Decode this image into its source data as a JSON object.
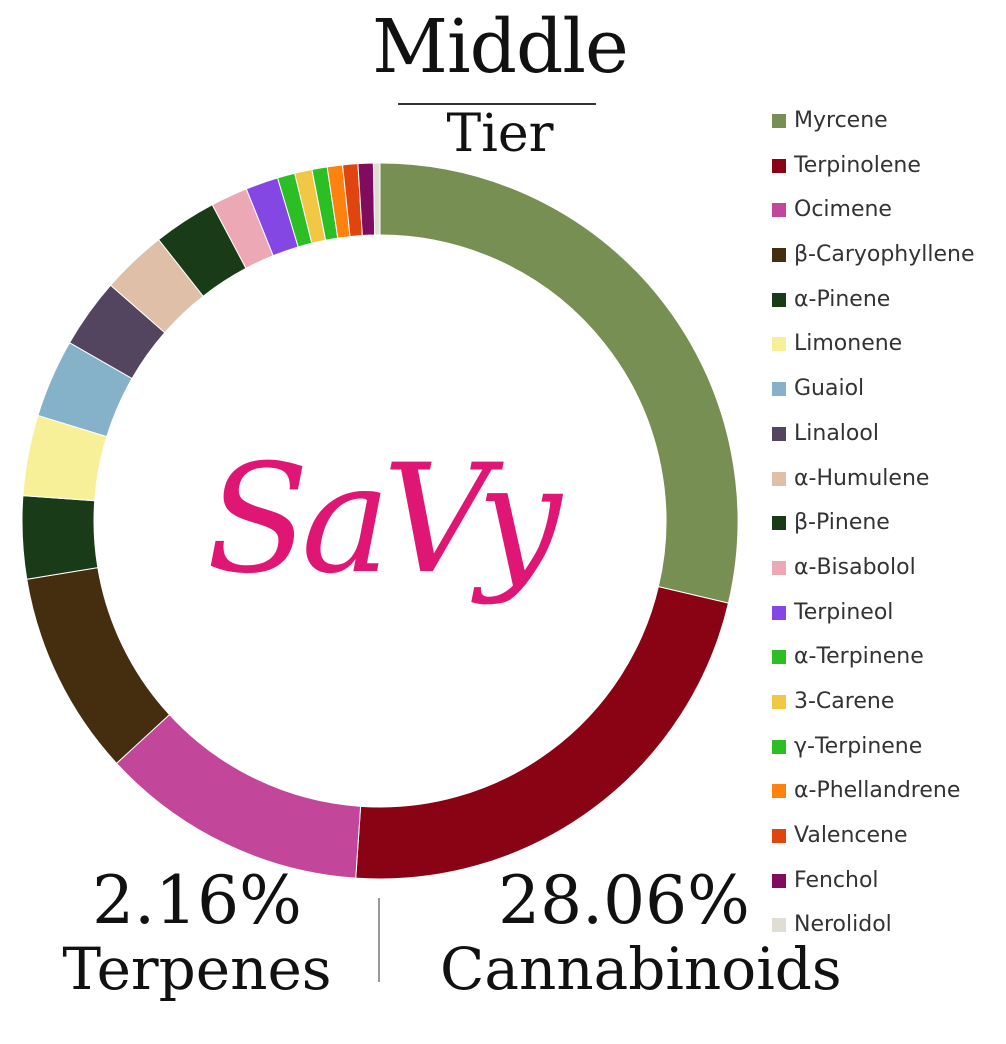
{
  "title": "Middle",
  "subtitle": "Tier",
  "logo_text": "SaVy",
  "stats": {
    "terpenes_value": "2.16%",
    "terpenes_label": "Terpenes",
    "cannabinoids_value": "28.06%",
    "cannabinoids_label": "Cannabinoids"
  },
  "chart_data": {
    "type": "pie",
    "style": "donut",
    "legend_position": "right",
    "categories": [
      "Myrcene",
      "Terpinolene",
      "Ocimene",
      "β-Caryophyllene",
      "α-Pinene",
      "Limonene",
      "Guaiol",
      "Linalool",
      "α-Humulene",
      "β-Pinene",
      "α-Bisabolol",
      "Terpineol",
      "α-Terpinene",
      "3-Carene",
      "γ-Terpinene",
      "α-Phellandrene",
      "Valencene",
      "Fenchol",
      "Nerolidol"
    ],
    "values": [
      29.2,
      22.8,
      12.3,
      9.4,
      3.8,
      3.7,
      3.6,
      3.2,
      3.0,
      2.9,
      1.7,
      1.5,
      0.8,
      0.8,
      0.7,
      0.7,
      0.7,
      0.7,
      0.3
    ],
    "colors": [
      "#788f54",
      "#8a0314",
      "#c2469a",
      "#452e0f",
      "#1a3b17",
      "#f7f098",
      "#85b2c9",
      "#53445f",
      "#e0bfa8",
      "#1a3b17",
      "#eda8b6",
      "#8447e3",
      "#2cbf25",
      "#f2c744",
      "#2cbf25",
      "#ff8210",
      "#e0440f",
      "#800c5e",
      "#e0ddd5"
    ]
  }
}
